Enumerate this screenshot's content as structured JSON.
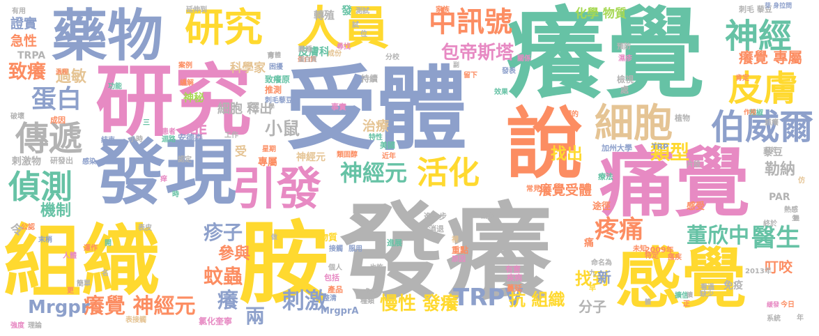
{
  "palette": {
    "pink": "#e78ac3",
    "blue": "#8da0cb",
    "green": "#66c2a5",
    "orange": "#fc8d62",
    "yellow": "#ffd92f",
    "lime": "#a6d854",
    "tan": "#e5c494",
    "gray": "#b3b3b3"
  },
  "words": [
    {
      "text": "發癢",
      "color": "gray"
    },
    {
      "text": "受體",
      "color": "blue"
    },
    {
      "text": "癢覺",
      "color": "green"
    },
    {
      "text": "痛覺",
      "color": "pink"
    },
    {
      "text": "組織",
      "color": "yellow"
    },
    {
      "text": "胺",
      "color": "yellow"
    },
    {
      "text": "研究",
      "color": "pink"
    },
    {
      "text": "發現",
      "color": "blue"
    },
    {
      "text": "藥物",
      "color": "blue"
    },
    {
      "text": "感覺",
      "color": "yellow"
    },
    {
      "text": "研究",
      "color": "yellow"
    },
    {
      "text": "人員",
      "color": "yellow"
    },
    {
      "text": "說",
      "color": "orange"
    },
    {
      "text": "引發",
      "color": "pink"
    },
    {
      "text": "神經",
      "color": "green"
    },
    {
      "text": "皮膚",
      "color": "yellow"
    },
    {
      "text": "伯威爾",
      "color": "blue"
    },
    {
      "text": "細胞",
      "color": "tan"
    },
    {
      "text": "活化",
      "color": "yellow"
    },
    {
      "text": "神經元",
      "color": "green"
    },
    {
      "text": "中訊號",
      "color": "orange"
    },
    {
      "text": "包帝斯塔",
      "color": "pink"
    },
    {
      "text": "傳遞",
      "color": "gray"
    },
    {
      "text": "偵測",
      "color": "green"
    },
    {
      "text": "蛋白",
      "color": "blue"
    },
    {
      "text": "致癢",
      "color": "orange"
    },
    {
      "text": "過敏",
      "color": "tan"
    },
    {
      "text": "小鼠",
      "color": "gray"
    },
    {
      "text": "類型",
      "color": "yellow"
    },
    {
      "text": "醫生",
      "color": "green"
    },
    {
      "text": "董欣中",
      "color": "green"
    },
    {
      "text": "疼痛",
      "color": "orange"
    },
    {
      "text": "癢覺受體",
      "color": "orange"
    },
    {
      "text": "癢覺 專屬",
      "color": "orange"
    },
    {
      "text": "蚊蟲",
      "color": "orange"
    },
    {
      "text": "參與",
      "color": "orange"
    },
    {
      "text": "疹子",
      "color": "blue"
    },
    {
      "text": "癢",
      "color": "blue"
    },
    {
      "text": "兩",
      "color": "blue"
    },
    {
      "text": "癢覺 神經元",
      "color": "orange"
    },
    {
      "text": "刺激",
      "color": "blue"
    },
    {
      "text": "Mrgpr",
      "color": "blue"
    },
    {
      "text": "TRPV",
      "color": "blue"
    },
    {
      "text": "慢性 發癢",
      "color": "yellow"
    },
    {
      "text": "抗 組織",
      "color": "yellow"
    },
    {
      "text": "找到",
      "color": "yellow"
    },
    {
      "text": "機制",
      "color": "green"
    },
    {
      "text": "分子",
      "color": "gray"
    },
    {
      "text": "新",
      "color": "blue"
    },
    {
      "text": "找出",
      "color": "yellow"
    },
    {
      "text": "勒納",
      "color": "gray"
    },
    {
      "text": "叮咬",
      "color": "orange"
    },
    {
      "text": "治療",
      "color": "tan"
    },
    {
      "text": "細胞 釋出",
      "color": "gray"
    },
    {
      "text": "科學家",
      "color": "tan"
    },
    {
      "text": "非",
      "color": "pink"
    },
    {
      "text": "神秘",
      "color": "lime"
    },
    {
      "text": "化學 物質",
      "color": "lime"
    },
    {
      "text": "皮膚科",
      "color": "green"
    },
    {
      "text": "證實",
      "color": "blue"
    },
    {
      "text": "急性",
      "color": "orange"
    },
    {
      "text": "TRPA",
      "color": "gray"
    },
    {
      "text": "轉殖",
      "color": "gray"
    },
    {
      "text": "發",
      "color": "green"
    },
    {
      "text": "事實",
      "color": "pink"
    },
    {
      "text": "美國",
      "color": "green"
    },
    {
      "text": "加州大學",
      "color": "blue"
    },
    {
      "text": "MrgprA",
      "color": "blue"
    },
    {
      "text": "有害",
      "color": "pink"
    },
    {
      "text": "產品",
      "color": "orange"
    },
    {
      "text": "物質",
      "color": "yellow"
    },
    {
      "text": "進展",
      "color": "green"
    },
    {
      "text": "重點",
      "color": "orange"
    },
    {
      "text": "免疫",
      "color": "gray"
    },
    {
      "text": "2009年",
      "color": "orange"
    },
    {
      "text": "2013年",
      "color": "gray"
    },
    {
      "text": "氯化奎寧",
      "color": "pink"
    },
    {
      "text": "受",
      "color": "tan"
    },
    {
      "text": "專屬",
      "color": "orange"
    },
    {
      "text": "神經元",
      "color": "tan"
    },
    {
      "text": "刺毛 藜豆",
      "color": "gray"
    },
    {
      "text": "植物",
      "color": "gray"
    },
    {
      "text": "藜豆",
      "color": "gray"
    },
    {
      "text": "PAR",
      "color": "gray"
    },
    {
      "text": "感受",
      "color": "orange"
    },
    {
      "text": "途徑",
      "color": "orange"
    },
    {
      "text": "痛",
      "color": "orange"
    },
    {
      "text": "進一步",
      "color": "gray"
    },
    {
      "text": "消退",
      "color": "gray"
    },
    {
      "text": "疾病",
      "color": "pink"
    },
    {
      "text": "蔓延",
      "color": "orange"
    },
    {
      "text": "包括",
      "color": "pink"
    },
    {
      "text": "危害",
      "color": "gray"
    },
    {
      "text": "整清",
      "color": "blue"
    },
    {
      "text": "種類",
      "color": "gray"
    },
    {
      "text": "個人",
      "color": "gray"
    },
    {
      "text": "也許",
      "color": "gray"
    },
    {
      "text": "接觸",
      "color": "blue"
    },
    {
      "text": "服用",
      "color": "blue"
    },
    {
      "text": "蛋白質",
      "color": "orange"
    },
    {
      "text": "持續",
      "color": "gray"
    },
    {
      "text": "分校",
      "color": "gray"
    },
    {
      "text": "尋找",
      "color": "pink"
    },
    {
      "text": "入睡",
      "color": "gray"
    },
    {
      "text": "成份",
      "color": "tan"
    },
    {
      "text": "留下",
      "color": "orange"
    },
    {
      "text": "發表",
      "color": "blue"
    },
    {
      "text": "效果",
      "color": "green"
    },
    {
      "text": "檢視",
      "color": "gray"
    },
    {
      "text": "處",
      "color": "gray"
    },
    {
      "text": "關係",
      "color": "pink"
    },
    {
      "text": "致癢原",
      "color": "green"
    },
    {
      "text": "推測",
      "color": "orange"
    },
    {
      "text": "困擾",
      "color": "blue"
    },
    {
      "text": "過程",
      "color": "orange"
    },
    {
      "text": "案例",
      "color": "orange"
    },
    {
      "text": "功能",
      "color": "green"
    },
    {
      "text": "纏解",
      "color": "orange"
    },
    {
      "text": "有用",
      "color": "gray"
    },
    {
      "text": "延伸到",
      "color": "gray"
    },
    {
      "text": "家族",
      "color": "orange"
    },
    {
      "text": "測試",
      "color": "gray"
    },
    {
      "text": "預防",
      "color": "gray"
    },
    {
      "text": "濕疹",
      "color": "pink"
    },
    {
      "text": "肯定",
      "color": "orange"
    },
    {
      "text": "辣椒",
      "color": "green"
    },
    {
      "text": "抓癢",
      "color": "gray"
    },
    {
      "text": "作用",
      "color": "orange"
    },
    {
      "text": "療法",
      "color": "green"
    },
    {
      "text": "片段",
      "color": "gray"
    },
    {
      "text": "未知",
      "color": "orange"
    },
    {
      "text": "特定",
      "color": "orange"
    },
    {
      "text": "命名為",
      "color": "gray"
    },
    {
      "text": "看過",
      "color": "gray"
    },
    {
      "text": "缺少",
      "color": "gray"
    },
    {
      "text": "擴信",
      "color": "green"
    },
    {
      "text": "今日",
      "color": "orange"
    },
    {
      "text": "系統",
      "color": "gray"
    },
    {
      "text": "年",
      "color": "gray"
    },
    {
      "text": "只好",
      "color": "gray"
    },
    {
      "text": "剌激物",
      "color": "gray"
    },
    {
      "text": "研發出",
      "color": "gray"
    },
    {
      "text": "感染",
      "color": "blue"
    },
    {
      "text": "認定",
      "color": "gray"
    },
    {
      "text": "末梢",
      "color": "blue"
    },
    {
      "text": "公認",
      "color": "orange"
    },
    {
      "text": "令",
      "color": "gray"
    },
    {
      "text": "表皮",
      "color": "gray"
    },
    {
      "text": "運作",
      "color": "orange"
    },
    {
      "text": "人體",
      "color": "pink"
    },
    {
      "text": "簡單",
      "color": "gray"
    },
    {
      "text": "理論",
      "color": "gray"
    },
    {
      "text": "強度",
      "color": "pink"
    },
    {
      "text": "安德森",
      "color": "blue"
    },
    {
      "text": "小時",
      "color": "gray"
    },
    {
      "text": "結束",
      "color": "blue"
    },
    {
      "text": "工作",
      "color": "gray"
    },
    {
      "text": "星期",
      "color": "orange"
    },
    {
      "text": "成因",
      "color": "orange"
    },
    {
      "text": "破壞",
      "color": "gray"
    },
    {
      "text": "刺毛藜豆",
      "color": "blue"
    },
    {
      "text": "動作",
      "color": "gray"
    },
    {
      "text": "常見",
      "color": "orange"
    },
    {
      "text": "瘙疾",
      "color": "orange"
    },
    {
      "text": "類固醇",
      "color": "orange"
    },
    {
      "text": "特性",
      "color": "green"
    },
    {
      "text": "近年",
      "color": "orange"
    },
    {
      "text": "標的",
      "color": "orange"
    },
    {
      "text": "患者",
      "color": "pink"
    },
    {
      "text": "迴路",
      "color": "green"
    },
    {
      "text": "原因",
      "color": "pink"
    },
    {
      "text": "裡",
      "color": "tan"
    },
    {
      "text": "時",
      "color": "green"
    },
    {
      "text": "開",
      "color": "green"
    },
    {
      "text": "表接觸",
      "color": "tan"
    },
    {
      "text": "九",
      "color": "gray"
    },
    {
      "text": "早",
      "color": "yellow"
    },
    {
      "text": "正",
      "color": "orange"
    },
    {
      "text": "更",
      "color": "orange"
    },
    {
      "text": "名",
      "color": "gray"
    },
    {
      "text": "三",
      "color": "green"
    },
    {
      "text": "仿",
      "color": "tan"
    },
    {
      "text": "痒",
      "color": "pink"
    },
    {
      "text": "芽 身拉問",
      "color": "blue"
    },
    {
      "text": "TRP",
      "color": "blue"
    },
    {
      "text": "試",
      "color": "gray"
    },
    {
      "text": "位",
      "color": "gray"
    },
    {
      "text": "育",
      "color": "gray"
    },
    {
      "text": "育體",
      "color": "gray"
    },
    {
      "text": "蛋白質",
      "color": "gray"
    },
    {
      "text": "擴",
      "color": "gray"
    },
    {
      "text": "睡",
      "color": "gray"
    },
    {
      "text": "緩發",
      "color": "pink"
    },
    {
      "text": "終於",
      "color": "gray"
    },
    {
      "text": "熱感",
      "color": "gray"
    },
    {
      "text": "機",
      "color": "gray"
    },
    {
      "text": "生",
      "color": "gray"
    },
    {
      "text": "做",
      "color": "gray"
    },
    {
      "text": "體",
      "color": "gray"
    },
    {
      "text": "副",
      "color": "gray"
    },
    {
      "text": "學",
      "color": "gray"
    },
    {
      "text": "傳",
      "color": "gray"
    }
  ]
}
